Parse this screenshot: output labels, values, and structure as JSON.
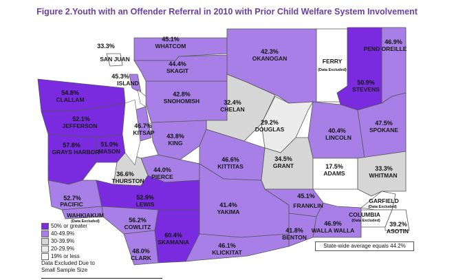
{
  "title": "Figure 2.Youth with an Offender Referral in 2010 with Prior Child Welfare System Involvement",
  "colors": {
    "c50": "#7a2be0",
    "c40": "#a77fe6",
    "c30": "#d6d6d6",
    "c20": "#ececec",
    "c19": "#ffffff",
    "excl": "#ffffff"
  },
  "counties": {
    "san_juan": {
      "name": "SAN JUAN",
      "pct": "33.3%"
    },
    "whatcom": {
      "name": "WHATCOM",
      "pct": "45.1%"
    },
    "okanogan": {
      "name": "OKANOGAN",
      "pct": "42.3%"
    },
    "ferry": {
      "name": "FERRY",
      "note": "(Data Excluded)"
    },
    "stevens": {
      "name": "STEVENS",
      "pct": "50.9%"
    },
    "pend_oreille": {
      "name": "PEND OREILLE",
      "pct": "46.9%"
    },
    "island": {
      "name": "ISLAND",
      "pct": "45.3%"
    },
    "skagit": {
      "name": "SKAGIT",
      "pct": "44.4%"
    },
    "clallam": {
      "name": "CLALLAM",
      "pct": "54.8%"
    },
    "snohomish": {
      "name": "SNOHOMISH",
      "pct": "42.8%"
    },
    "chelan": {
      "name": "CHELAN",
      "pct": "32.4%"
    },
    "jefferson": {
      "name": "JEFFERSON",
      "pct": "52.1%"
    },
    "douglas": {
      "name": "DOUGLAS",
      "pct": "29.2%"
    },
    "lincoln": {
      "name": "LINCOLN",
      "pct": "40.4%"
    },
    "spokane": {
      "name": "SPOKANE",
      "pct": "47.5%"
    },
    "kitsap": {
      "name": "KITSAP",
      "pct": "46.7%"
    },
    "king": {
      "name": "KING",
      "pct": "43.8%"
    },
    "grays_harbor": {
      "name": "GRAYS HARBOR",
      "pct": "57.8%"
    },
    "mason": {
      "name": "MASON",
      "pct": "51.0%"
    },
    "kittitas": {
      "name": "KITTITAS",
      "pct": "46.6%"
    },
    "grant": {
      "name": "GRANT",
      "pct": "34.5%"
    },
    "adams": {
      "name": "ADAMS",
      "pct": "17.5%"
    },
    "whitman": {
      "name": "WHITMAN",
      "pct": "33.3%"
    },
    "thurston": {
      "name": "THURSTON",
      "pct": "36.6%"
    },
    "pierce": {
      "name": "PIERCE",
      "pct": "44.0%"
    },
    "pacific": {
      "name": "PACIFIC",
      "pct": "52.7%"
    },
    "lewis": {
      "name": "LEWIS",
      "pct": "52.9%"
    },
    "yakima": {
      "name": "YAKIMA",
      "pct": "41.4%"
    },
    "franklin": {
      "name": "FRANKLIN",
      "pct": "45.1%"
    },
    "garfield": {
      "name": "GARFIELD",
      "note": "(Data Excluded)"
    },
    "wahkiakum": {
      "name": "WAHKIAKUM",
      "note": "(Data Excluded)"
    },
    "cowlitz": {
      "name": "COWLITZ",
      "pct": "56.2%"
    },
    "columbia": {
      "name": "COLUMBIA",
      "note": "(Data Excluded)"
    },
    "asotin": {
      "name": "ASOTIN",
      "pct": "39.2%"
    },
    "skamania": {
      "name": "SKAMANIA",
      "pct": "60.4%"
    },
    "benton": {
      "name": "BENTON",
      "pct": "41.8%"
    },
    "walla_walla": {
      "name": "WALLA WALLA",
      "pct": "46.9%"
    },
    "clark": {
      "name": "CLARK",
      "pct": "48.0%"
    },
    "klickitat": {
      "name": "KLICKITAT",
      "pct": "46.1%"
    }
  },
  "legend": {
    "items": [
      {
        "label": "50% or greater",
        "color": "#7a2be0"
      },
      {
        "label": "40-49.9%",
        "color": "#a77fe6"
      },
      {
        "label": "30-39.9%",
        "color": "#d6d6d6"
      },
      {
        "label": "20-29.9%",
        "color": "#ececec"
      },
      {
        "label": "19% or less",
        "color": "#ffffff"
      }
    ],
    "excluded_line1": "Data Excluded Due to",
    "excluded_line2": "Small Sample Size"
  },
  "statewide": "State-wide average equals 44.2%"
}
